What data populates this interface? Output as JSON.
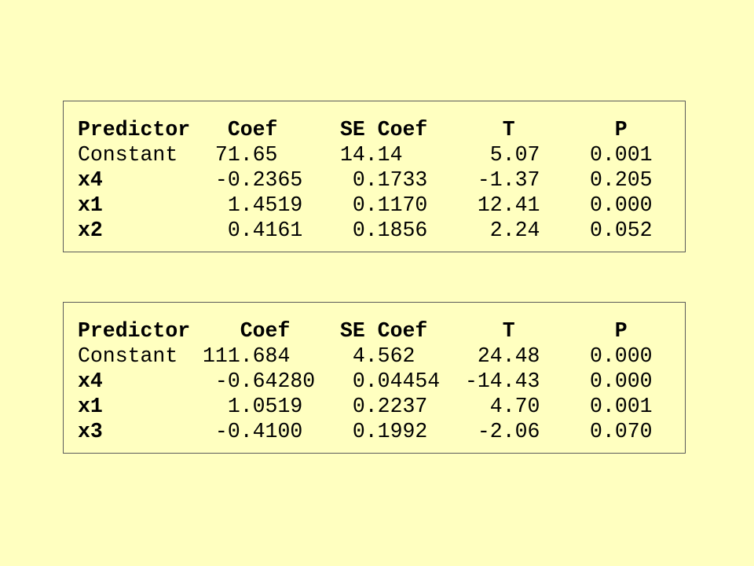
{
  "tables": [
    {
      "header": "Predictor   Coef     SE Coef      T        P",
      "rows": [
        {
          "predictor": "Constant",
          "line": "Constant   71.65     14.14       5.07    0.001",
          "bold": false
        },
        {
          "predictor": "x4",
          "line": "x4         -0.2365    0.1733    -1.37    0.205",
          "bold": true
        },
        {
          "predictor": "x1",
          "line": "x1          1.4519    0.1170    12.41    0.000",
          "bold": true
        },
        {
          "predictor": "x2",
          "line": "x2          0.4161    0.1856     2.24    0.052",
          "bold": true
        }
      ]
    },
    {
      "header": "Predictor    Coef    SE Coef      T        P",
      "rows": [
        {
          "predictor": "Constant",
          "line": "Constant  111.684     4.562     24.48    0.000",
          "bold": false
        },
        {
          "predictor": "x4",
          "line": "x4         -0.64280   0.04454  -14.43    0.000",
          "bold": true
        },
        {
          "predictor": "x1",
          "line": "x1          1.0519    0.2237     4.70    0.001",
          "bold": true
        },
        {
          "predictor": "x3",
          "line": "x3         -0.4100    0.1992    -2.06    0.070",
          "bold": true
        }
      ]
    }
  ]
}
